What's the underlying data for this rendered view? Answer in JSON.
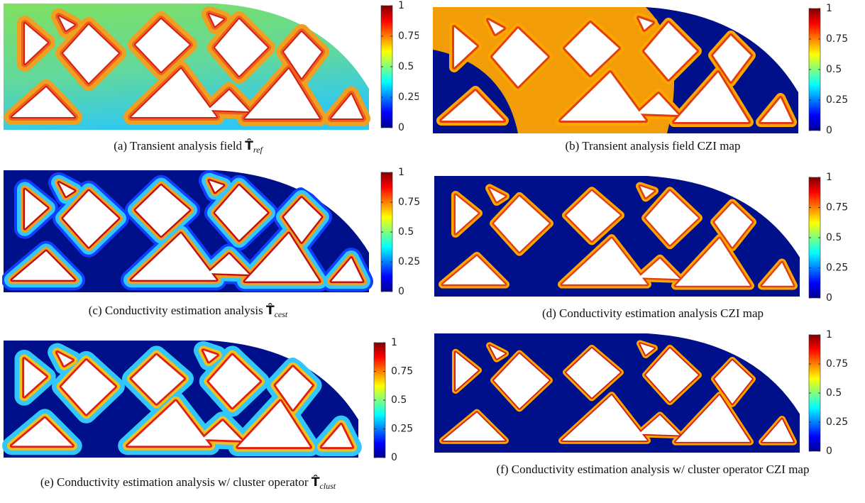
{
  "colorbar": {
    "lim": [
      0,
      1
    ],
    "ticks": [
      0,
      0.25,
      0.5,
      0.75,
      1
    ]
  },
  "panels": [
    {
      "caption": {
        "label": "(a)",
        "text": "Transient analysis field",
        "symbol": "T̂",
        "subscript": "ref"
      }
    },
    {
      "caption": {
        "label": "(b)",
        "text": "Transient analysis field CZI map"
      }
    },
    {
      "caption": {
        "label": "(c)",
        "text": "Conductivity estimation analysis",
        "symbol": "T̂",
        "subscript": "cest"
      }
    },
    {
      "caption": {
        "label": "(d)",
        "text": "Conductivity estimation analysis CZI map"
      }
    },
    {
      "caption": {
        "label": "(e)",
        "text": "Conductivity estimation analysis w/ cluster operator",
        "symbol": "T̂",
        "subscript": "clust"
      }
    },
    {
      "caption": {
        "label": "(f)",
        "text": "Conductivity estimation analysis w/ cluster operator CZI map"
      }
    }
  ]
}
